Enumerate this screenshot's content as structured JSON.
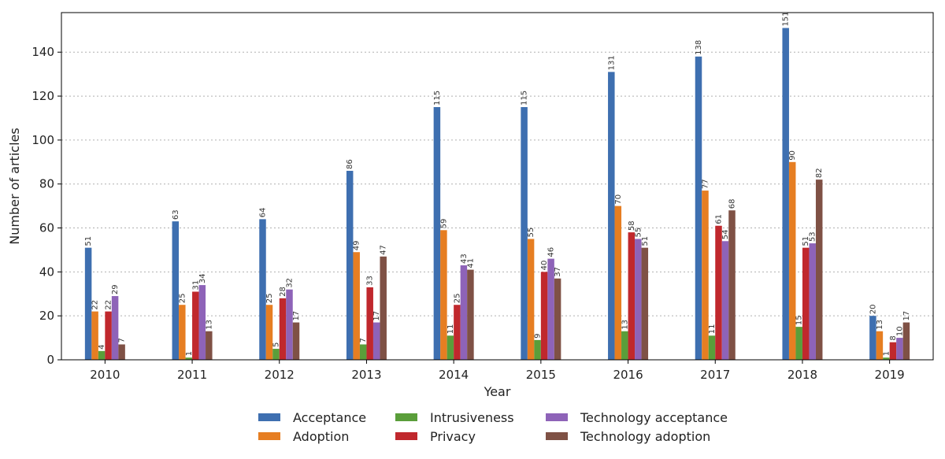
{
  "chart_data": {
    "type": "bar",
    "title": "",
    "xlabel": "Year",
    "ylabel": "Number of articles",
    "ylim": [
      0,
      158
    ],
    "yticks": [
      0,
      20,
      40,
      60,
      80,
      100,
      120,
      140
    ],
    "grid": "horizontal dotted",
    "legend_position": "bottom-center",
    "categories": [
      "2010",
      "2011",
      "2012",
      "2013",
      "2014",
      "2015",
      "2016",
      "2017",
      "2018",
      "2019"
    ],
    "series": [
      {
        "name": "Acceptance",
        "color": "#3e6fb0",
        "values": [
          51,
          63,
          64,
          86,
          115,
          115,
          131,
          138,
          151,
          20
        ]
      },
      {
        "name": "Adoption",
        "color": "#e67e22",
        "values": [
          22,
          25,
          25,
          49,
          59,
          55,
          70,
          77,
          90,
          13
        ]
      },
      {
        "name": "Intrusiveness",
        "color": "#5a9e3a",
        "values": [
          4,
          1,
          5,
          7,
          11,
          9,
          13,
          11,
          15,
          1
        ]
      },
      {
        "name": "Privacy",
        "color": "#c0282d",
        "values": [
          22,
          31,
          28,
          33,
          25,
          40,
          58,
          61,
          51,
          8
        ]
      },
      {
        "name": "Technology acceptance",
        "color": "#8e63b8",
        "values": [
          29,
          34,
          32,
          17,
          43,
          46,
          55,
          54,
          53,
          10
        ]
      },
      {
        "name": "Technology adoption",
        "color": "#7f5145",
        "values": [
          7,
          13,
          17,
          47,
          41,
          37,
          51,
          68,
          82,
          17
        ]
      }
    ]
  }
}
